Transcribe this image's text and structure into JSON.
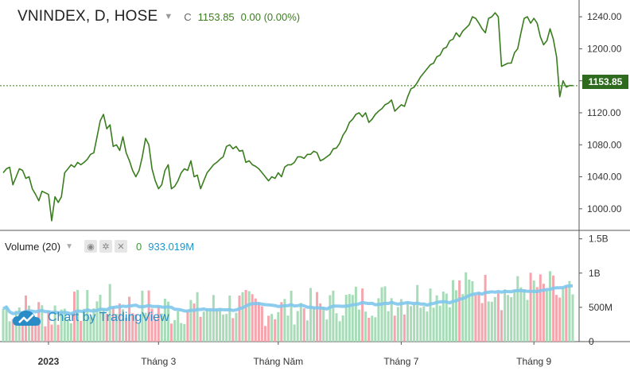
{
  "header": {
    "symbol": "VNINDEX, D, HOSE",
    "close_key": "C",
    "close": "1153.85",
    "change": "0.00 (0.00%)"
  },
  "volume_header": {
    "label": "Volume (20)",
    "v0": "0",
    "v1": "933.019M"
  },
  "logo": {
    "text": "Chart by TradingView"
  },
  "colors": {
    "price_line": "#3a7d1f",
    "vol_up": "#a8dcb9",
    "vol_down": "#f5a5ad",
    "vol_ma": "#7fc6ec",
    "last_label_bg": "#2f6b1f"
  },
  "chart_data": [
    {
      "type": "line",
      "name": "price",
      "y_ticks": [
        "1240.00",
        "1200.00",
        "1160.00",
        "1120.00",
        "1080.00",
        "1040.00",
        "1000.00"
      ],
      "y_tick_values": [
        1240,
        1200,
        1160,
        1120,
        1080,
        1040,
        1000
      ],
      "ylim": [
        975,
        1255
      ],
      "last_value": 1153.85,
      "last_label": "1153.85",
      "x_labels": [
        "2023",
        "Tháng 3",
        "Tháng Năm",
        "Tháng 7",
        "Tháng 9"
      ],
      "x_label_positions_index": [
        14,
        48,
        85,
        123,
        164
      ],
      "values": [
        1045,
        1050,
        1052,
        1030,
        1040,
        1050,
        1048,
        1038,
        1040,
        1025,
        1018,
        1010,
        1022,
        1020,
        1018,
        985,
        1015,
        1008,
        1015,
        1045,
        1050,
        1055,
        1052,
        1058,
        1055,
        1058,
        1062,
        1068,
        1070,
        1090,
        1110,
        1118,
        1100,
        1105,
        1078,
        1080,
        1073,
        1090,
        1070,
        1060,
        1048,
        1040,
        1048,
        1065,
        1088,
        1080,
        1050,
        1035,
        1025,
        1030,
        1048,
        1055,
        1025,
        1028,
        1035,
        1045,
        1050,
        1048,
        1060,
        1040,
        1042,
        1025,
        1035,
        1045,
        1050,
        1055,
        1058,
        1062,
        1065,
        1078,
        1080,
        1075,
        1078,
        1072,
        1073,
        1058,
        1060,
        1055,
        1053,
        1050,
        1045,
        1040,
        1035,
        1040,
        1038,
        1045,
        1040,
        1052,
        1055,
        1055,
        1058,
        1065,
        1065,
        1063,
        1068,
        1068,
        1072,
        1070,
        1060,
        1062,
        1065,
        1068,
        1075,
        1076,
        1082,
        1092,
        1098,
        1108,
        1112,
        1118,
        1120,
        1115,
        1120,
        1108,
        1112,
        1118,
        1122,
        1125,
        1130,
        1132,
        1136,
        1122,
        1126,
        1130,
        1128,
        1140,
        1150,
        1152,
        1158,
        1165,
        1170,
        1175,
        1180,
        1182,
        1190,
        1192,
        1200,
        1202,
        1210,
        1212,
        1220,
        1215,
        1222,
        1226,
        1230,
        1240,
        1238,
        1232,
        1225,
        1220,
        1238,
        1240,
        1245,
        1240,
        1178,
        1180,
        1182,
        1182,
        1195,
        1200,
        1220,
        1238,
        1240,
        1232,
        1238,
        1232,
        1215,
        1205,
        1210,
        1225,
        1212,
        1190,
        1140,
        1160,
        1152,
        1154,
        1154
      ]
    },
    {
      "type": "bar",
      "name": "volume",
      "y_ticks": [
        "1.5B",
        "1B",
        "500M",
        "0"
      ],
      "y_tick_values": [
        1500,
        1000,
        500,
        0
      ],
      "ylim": [
        0,
        1600
      ],
      "unit": "M"
    }
  ]
}
